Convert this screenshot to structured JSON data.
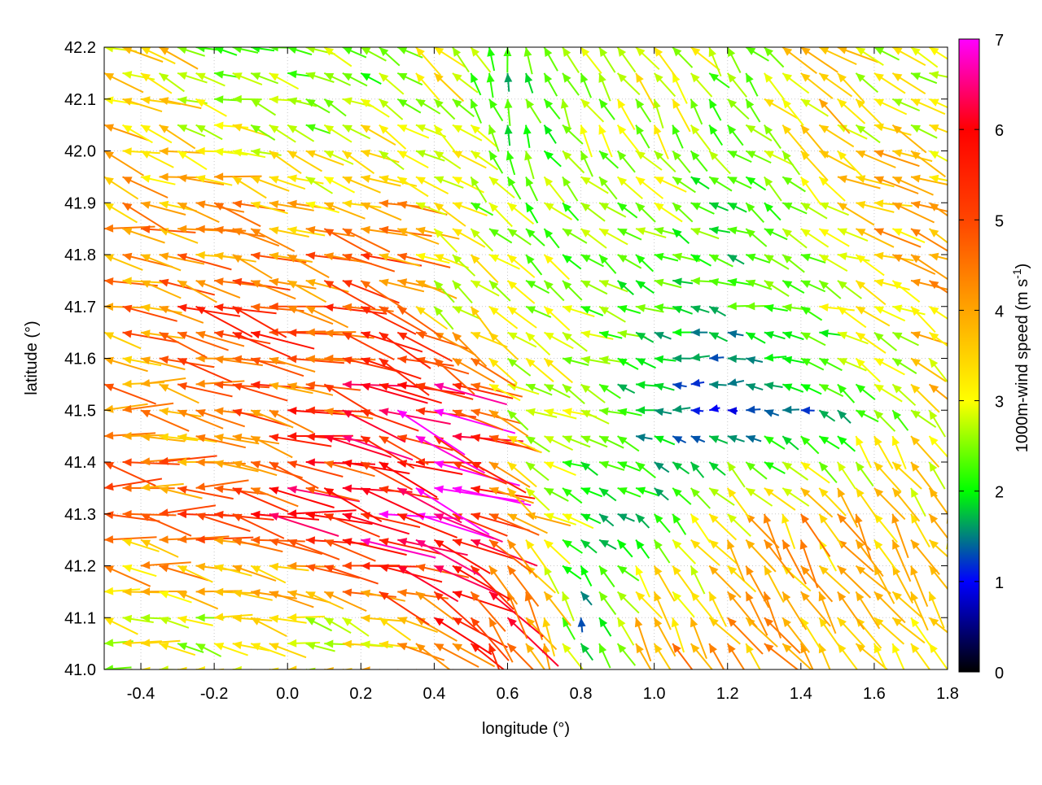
{
  "chart_data": {
    "type": "vector",
    "title": "",
    "xlabel": "longitude (°)",
    "ylabel": "latitude (°)",
    "colorbar_label": "1000m-wind speed (m s",
    "colorbar_label_sup": "-1",
    "colorbar_label_end": ")",
    "xlim": [
      -0.5,
      1.8
    ],
    "ylim": [
      41.0,
      42.2
    ],
    "clim": [
      0,
      7
    ],
    "grid": true,
    "xticks": [
      "-0.4",
      "-0.2",
      "0.0",
      "0.2",
      "0.4",
      "0.6",
      "0.8",
      "1.0",
      "1.2",
      "1.4",
      "1.6",
      "1.8"
    ],
    "yticks": [
      "41.0",
      "41.1",
      "41.2",
      "41.3",
      "41.4",
      "41.5",
      "41.6",
      "41.7",
      "41.8",
      "41.9",
      "42.0",
      "42.1",
      "42.2"
    ],
    "cticks": [
      "0",
      "1",
      "2",
      "3",
      "4",
      "5",
      "6",
      "7"
    ],
    "palette": [
      "#000000",
      "#0000ff",
      "#00ff00",
      "#ffff00",
      "#ffa500",
      "#ff4500",
      "#ff0000",
      "#ff00ff"
    ],
    "grid_lon": [
      -0.4,
      -0.2,
      0.0,
      0.2,
      0.4,
      0.6,
      0.8,
      1.0,
      1.2,
      1.4,
      1.6,
      1.8
    ],
    "grid_lat": [
      41.1,
      41.3,
      41.5,
      41.7,
      41.9,
      42.1
    ],
    "speed": [
      [
        3.0,
        3.0,
        3.0,
        3.5,
        5.0,
        5.5,
        1.5,
        4.0,
        4.0,
        3.5,
        3.2,
        3.0
      ],
      [
        4.5,
        5.0,
        5.5,
        6.5,
        7.0,
        4.0,
        2.0,
        2.0,
        3.5,
        3.8,
        3.8,
        3.5
      ],
      [
        4.0,
        4.5,
        5.0,
        5.5,
        6.5,
        3.0,
        2.5,
        1.5,
        1.0,
        1.5,
        2.5,
        3.5
      ],
      [
        4.5,
        5.0,
        5.0,
        5.5,
        3.0,
        3.0,
        2.5,
        2.0,
        2.0,
        2.5,
        3.0,
        4.0
      ],
      [
        4.0,
        4.0,
        3.5,
        4.5,
        3.0,
        2.5,
        2.5,
        2.5,
        2.0,
        2.5,
        4.0,
        3.5
      ],
      [
        3.5,
        2.5,
        2.5,
        2.5,
        3.0,
        2.0,
        2.5,
        3.0,
        2.5,
        3.5,
        3.0,
        3.0
      ]
    ],
    "direction_deg": [
      [
        170,
        170,
        168,
        160,
        150,
        120,
        110,
        125,
        125,
        125,
        125,
        125
      ],
      [
        172,
        172,
        168,
        165,
        165,
        150,
        150,
        140,
        125,
        125,
        125,
        120
      ],
      [
        172,
        170,
        168,
        165,
        160,
        150,
        160,
        180,
        180,
        170,
        130,
        130
      ],
      [
        168,
        168,
        165,
        160,
        140,
        140,
        150,
        160,
        170,
        160,
        150,
        150
      ],
      [
        165,
        165,
        160,
        160,
        150,
        130,
        140,
        150,
        150,
        140,
        160,
        160
      ],
      [
        160,
        165,
        160,
        150,
        140,
        100,
        120,
        120,
        130,
        140,
        150,
        160
      ]
    ]
  }
}
